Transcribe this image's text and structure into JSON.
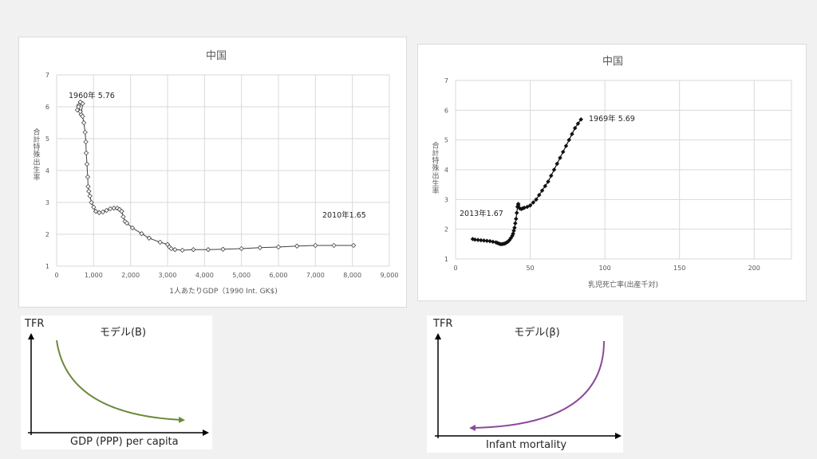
{
  "chart_data": [
    {
      "type": "line",
      "title": "中国",
      "xlabel": "1人あたりGDP（1990 Int. GK$)",
      "ylabel": "合計特殊出生率",
      "xlim": [
        0,
        9000
      ],
      "ylim": [
        1,
        7
      ],
      "x_ticks": [
        "0",
        "1,000",
        "2,000",
        "3,000",
        "4,000",
        "5,000",
        "6,000",
        "7,000",
        "8,000",
        "9,000"
      ],
      "y_ticks": [
        "1",
        "2",
        "3",
        "4",
        "5",
        "6",
        "7"
      ],
      "marker": "hollow-diamond",
      "grid": true,
      "annotations": [
        "1960年 5.76",
        "2010年1.65"
      ],
      "series": [
        {
          "x": [
            662,
            705,
            640,
            600,
            560,
            590,
            640,
            700,
            735,
            770,
            790,
            800,
            820,
            840,
            850,
            870,
            900,
            940,
            1000,
            1060,
            1150,
            1250,
            1350,
            1450,
            1550,
            1640,
            1700,
            1760,
            1800,
            1850,
            1900,
            2050,
            2300,
            2500,
            2800,
            3000,
            3050,
            3100,
            3200,
            3400,
            3700,
            4100,
            4500,
            5000,
            5500,
            6000,
            6500,
            7000,
            7500,
            8032
          ],
          "y": [
            5.76,
            6.1,
            6.15,
            6.05,
            5.9,
            6.0,
            5.85,
            5.7,
            5.5,
            5.2,
            4.9,
            4.55,
            4.2,
            3.8,
            3.5,
            3.35,
            3.2,
            3.0,
            2.85,
            2.72,
            2.68,
            2.7,
            2.75,
            2.8,
            2.82,
            2.82,
            2.78,
            2.72,
            2.55,
            2.4,
            2.35,
            2.2,
            2.02,
            1.88,
            1.75,
            1.68,
            1.6,
            1.55,
            1.52,
            1.5,
            1.52,
            1.52,
            1.53,
            1.55,
            1.58,
            1.6,
            1.63,
            1.65,
            1.65,
            1.65
          ]
        }
      ]
    },
    {
      "type": "line",
      "title": "中国",
      "xlabel": "乳児死亡率(出産千対)",
      "ylabel": "合計特殊出生率",
      "xlim": [
        0,
        225
      ],
      "ylim": [
        1,
        7
      ],
      "x_ticks": [
        "0",
        "50",
        "100",
        "150",
        "200"
      ],
      "y_ticks": [
        "1",
        "2",
        "3",
        "4",
        "5",
        "6",
        "7"
      ],
      "marker": "filled-diamond",
      "grid": true,
      "annotations": [
        "1969年 5.69",
        "2013年1.67"
      ],
      "series": [
        {
          "x": [
            84,
            82,
            80,
            78,
            76,
            74,
            72,
            70,
            68,
            66,
            64,
            62,
            60,
            58,
            56,
            54,
            52,
            50,
            48,
            46,
            45,
            44,
            43,
            42,
            42,
            41.5,
            41,
            40.5,
            40,
            39.5,
            39,
            38.5,
            38,
            37,
            36,
            35,
            34,
            33,
            32,
            31,
            30,
            29,
            28,
            27,
            25,
            23,
            21,
            19,
            17,
            15,
            13,
            11.5
          ],
          "y": [
            5.69,
            5.55,
            5.4,
            5.2,
            5.0,
            4.8,
            4.6,
            4.4,
            4.2,
            4.0,
            3.8,
            3.6,
            3.45,
            3.3,
            3.15,
            3.0,
            2.9,
            2.8,
            2.75,
            2.72,
            2.7,
            2.68,
            2.7,
            2.8,
            2.85,
            2.75,
            2.55,
            2.35,
            2.2,
            2.05,
            1.95,
            1.85,
            1.78,
            1.7,
            1.63,
            1.58,
            1.55,
            1.52,
            1.51,
            1.5,
            1.5,
            1.52,
            1.54,
            1.56,
            1.58,
            1.6,
            1.61,
            1.62,
            1.63,
            1.64,
            1.65,
            1.67
          ]
        }
      ]
    }
  ],
  "model_b": {
    "title": "モデル(B)",
    "y_axis_label": "TFR",
    "x_axis_label": "GDP (PPP) per capita",
    "curve_color": "#6a8a3a"
  },
  "model_beta": {
    "title": "モデル(β)",
    "y_axis_label": "TFR",
    "x_axis_label": "Infant mortality",
    "curve_color": "#8a4a9a"
  }
}
